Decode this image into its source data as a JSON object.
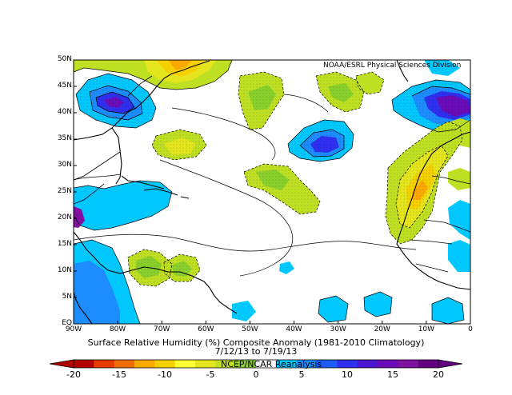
{
  "map": {
    "credit": "NOAA/ESRL Physical Sciences Division",
    "lat_labels": [
      "50N",
      "45N",
      "40N",
      "35N",
      "30N",
      "25N",
      "20N",
      "15N",
      "10N",
      "5N",
      "EQ"
    ],
    "lon_labels": [
      "90W",
      "80W",
      "70W",
      "60W",
      "50W",
      "40W",
      "30W",
      "20W",
      "10W",
      "0"
    ],
    "title": "Surface Relative Humidity (%) Composite Anomaly (1981-2010 Climatology)",
    "dates": "7/12/13   to 7/19/13",
    "source": "NCEP/NCAR Reanalysis"
  },
  "colorbar": {
    "labels": [
      "-20",
      "-15",
      "-10",
      "-5",
      "0",
      "5",
      "10",
      "15",
      "20"
    ],
    "colors": [
      "#b40000",
      "#e53a00",
      "#f26d00",
      "#f9a900",
      "#f5d000",
      "#ffff33",
      "#e5e51e",
      "#bfe022",
      "#8ad02c",
      "#ffffff",
      "#00c8ff",
      "#1c8cff",
      "#1e5cff",
      "#2f2ff0",
      "#4b16d0",
      "#6a0cb8",
      "#8010a0",
      "#620080"
    ]
  },
  "chart_data": {
    "type": "heatmap",
    "title": "Surface Relative Humidity (%) Composite Anomaly (1981-2010 Climatology)",
    "subtitle": "7/12/13   to 7/19/13",
    "lon_range": [
      -90,
      0
    ],
    "lat_range": [
      0,
      50
    ],
    "value_range": [
      -20,
      20
    ],
    "contour_interval": 2.5
  }
}
